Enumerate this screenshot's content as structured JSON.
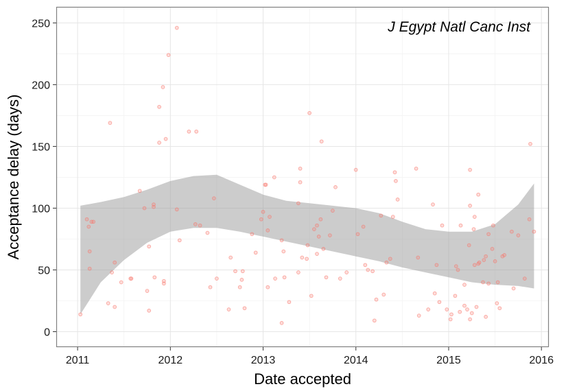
{
  "chart_data": {
    "type": "scatter",
    "title": "",
    "annotation": "J Egypt Natl Canc Inst",
    "xlabel": "Date accepted",
    "ylabel": "Acceptance delay (days)",
    "xlim": [
      2010.77,
      2016.08
    ],
    "ylim": [
      -12.5,
      263
    ],
    "x_ticks": [
      2011,
      2012,
      2013,
      2014,
      2015,
      2016
    ],
    "x_tick_labels": [
      "2011",
      "2012",
      "2013",
      "2014",
      "2015",
      "2016"
    ],
    "y_ticks": [
      0,
      50,
      100,
      150,
      200,
      250
    ],
    "y_tick_labels": [
      "0",
      "50",
      "100",
      "150",
      "200",
      "250"
    ],
    "grid": true,
    "colors": {
      "points": "#f8766d",
      "ribbon": "#999999",
      "panel_border": "#808080",
      "grid": "#ebebeb"
    },
    "series": [
      {
        "name": "",
        "points": [
          [
            2011.03,
            14
          ],
          [
            2011.1,
            91
          ],
          [
            2011.12,
            85
          ],
          [
            2011.13,
            65
          ],
          [
            2011.13,
            51
          ],
          [
            2011.15,
            89
          ],
          [
            2011.17,
            89
          ],
          [
            2011.33,
            23
          ],
          [
            2011.35,
            169
          ],
          [
            2011.37,
            48
          ],
          [
            2011.4,
            56
          ],
          [
            2011.4,
            20
          ],
          [
            2011.47,
            40
          ],
          [
            2011.57,
            43
          ],
          [
            2011.58,
            43
          ],
          [
            2011.67,
            114
          ],
          [
            2011.72,
            100
          ],
          [
            2011.75,
            33
          ],
          [
            2011.77,
            69
          ],
          [
            2011.77,
            17
          ],
          [
            2011.82,
            101
          ],
          [
            2011.82,
            103
          ],
          [
            2011.83,
            44
          ],
          [
            2011.88,
            182
          ],
          [
            2011.88,
            153
          ],
          [
            2011.92,
            198
          ],
          [
            2011.93,
            41
          ],
          [
            2011.93,
            39
          ],
          [
            2011.95,
            156
          ],
          [
            2011.98,
            224
          ],
          [
            2012.07,
            99
          ],
          [
            2012.07,
            246
          ],
          [
            2012.1,
            74
          ],
          [
            2012.2,
            162
          ],
          [
            2012.27,
            87
          ],
          [
            2012.28,
            162
          ],
          [
            2012.32,
            86
          ],
          [
            2012.4,
            80
          ],
          [
            2012.43,
            36
          ],
          [
            2012.47,
            108
          ],
          [
            2012.5,
            43
          ],
          [
            2012.63,
            18
          ],
          [
            2012.65,
            60
          ],
          [
            2012.7,
            49
          ],
          [
            2012.75,
            36
          ],
          [
            2012.77,
            42
          ],
          [
            2012.78,
            49
          ],
          [
            2012.8,
            19
          ],
          [
            2012.88,
            79
          ],
          [
            2012.92,
            64
          ],
          [
            2012.98,
            91
          ],
          [
            2013.0,
            97
          ],
          [
            2013.02,
            119
          ],
          [
            2013.03,
            119
          ],
          [
            2013.05,
            82
          ],
          [
            2013.05,
            36
          ],
          [
            2013.07,
            93
          ],
          [
            2013.12,
            125
          ],
          [
            2013.13,
            43
          ],
          [
            2013.2,
            74
          ],
          [
            2013.2,
            7
          ],
          [
            2013.22,
            65
          ],
          [
            2013.23,
            44
          ],
          [
            2013.28,
            24
          ],
          [
            2013.38,
            48
          ],
          [
            2013.38,
            104
          ],
          [
            2013.4,
            132
          ],
          [
            2013.4,
            121
          ],
          [
            2013.42,
            60
          ],
          [
            2013.47,
            59
          ],
          [
            2013.48,
            70
          ],
          [
            2013.5,
            177
          ],
          [
            2013.52,
            29
          ],
          [
            2013.55,
            83
          ],
          [
            2013.58,
            86
          ],
          [
            2013.58,
            63
          ],
          [
            2013.6,
            77
          ],
          [
            2013.62,
            91
          ],
          [
            2013.63,
            154
          ],
          [
            2013.65,
            67
          ],
          [
            2013.68,
            44
          ],
          [
            2013.72,
            78
          ],
          [
            2013.75,
            98
          ],
          [
            2013.78,
            117
          ],
          [
            2013.83,
            43
          ],
          [
            2013.9,
            48
          ],
          [
            2014.0,
            131
          ],
          [
            2014.02,
            79
          ],
          [
            2014.08,
            85
          ],
          [
            2014.1,
            54
          ],
          [
            2014.13,
            50
          ],
          [
            2014.18,
            49
          ],
          [
            2014.2,
            9
          ],
          [
            2014.22,
            26
          ],
          [
            2014.27,
            94
          ],
          [
            2014.3,
            30
          ],
          [
            2014.33,
            56
          ],
          [
            2014.37,
            59
          ],
          [
            2014.4,
            93
          ],
          [
            2014.42,
            129
          ],
          [
            2014.43,
            122
          ],
          [
            2014.45,
            107
          ],
          [
            2014.65,
            132
          ],
          [
            2014.67,
            60
          ],
          [
            2014.68,
            13
          ],
          [
            2014.78,
            18
          ],
          [
            2014.83,
            103
          ],
          [
            2014.85,
            31
          ],
          [
            2014.87,
            54
          ],
          [
            2014.9,
            24
          ],
          [
            2014.93,
            86
          ],
          [
            2014.98,
            18
          ],
          [
            2015.02,
            10
          ],
          [
            2015.03,
            14
          ],
          [
            2015.07,
            29
          ],
          [
            2015.08,
            53
          ],
          [
            2015.1,
            50
          ],
          [
            2015.12,
            16
          ],
          [
            2015.13,
            86
          ],
          [
            2015.17,
            38
          ],
          [
            2015.17,
            21
          ],
          [
            2015.2,
            18
          ],
          [
            2015.22,
            70
          ],
          [
            2015.23,
            131
          ],
          [
            2015.23,
            102
          ],
          [
            2015.23,
            10
          ],
          [
            2015.25,
            15
          ],
          [
            2015.27,
            83
          ],
          [
            2015.28,
            54
          ],
          [
            2015.28,
            93
          ],
          [
            2015.3,
            20
          ],
          [
            2015.32,
            111
          ],
          [
            2015.32,
            55
          ],
          [
            2015.33,
            56
          ],
          [
            2015.37,
            40
          ],
          [
            2015.38,
            58
          ],
          [
            2015.4,
            61
          ],
          [
            2015.4,
            12
          ],
          [
            2015.43,
            39
          ],
          [
            2015.43,
            79
          ],
          [
            2015.47,
            67
          ],
          [
            2015.48,
            86
          ],
          [
            2015.5,
            57
          ],
          [
            2015.52,
            23
          ],
          [
            2015.53,
            40
          ],
          [
            2015.55,
            19
          ],
          [
            2015.58,
            61
          ],
          [
            2015.6,
            62
          ],
          [
            2015.68,
            81
          ],
          [
            2015.7,
            35
          ],
          [
            2015.75,
            78
          ],
          [
            2015.82,
            43
          ],
          [
            2015.87,
            91
          ],
          [
            2015.88,
            152
          ],
          [
            2015.92,
            81
          ]
        ]
      }
    ],
    "smooth": {
      "x": [
        2011.03,
        2011.25,
        2011.5,
        2011.75,
        2012.0,
        2012.25,
        2012.5,
        2012.75,
        2013.0,
        2013.25,
        2013.5,
        2013.75,
        2014.0,
        2014.25,
        2014.5,
        2014.75,
        2015.0,
        2015.25,
        2015.5,
        2015.75,
        2015.92
      ],
      "lower": [
        14,
        40,
        58,
        72,
        81,
        84,
        84,
        81,
        77,
        73,
        69,
        65,
        61,
        57,
        52,
        48,
        44,
        40,
        38,
        37,
        35
      ],
      "upper": [
        102,
        105,
        109,
        115,
        122,
        126,
        127,
        119,
        111,
        106,
        104,
        102,
        100,
        96,
        89,
        83,
        81,
        81,
        87,
        103,
        120
      ]
    }
  }
}
